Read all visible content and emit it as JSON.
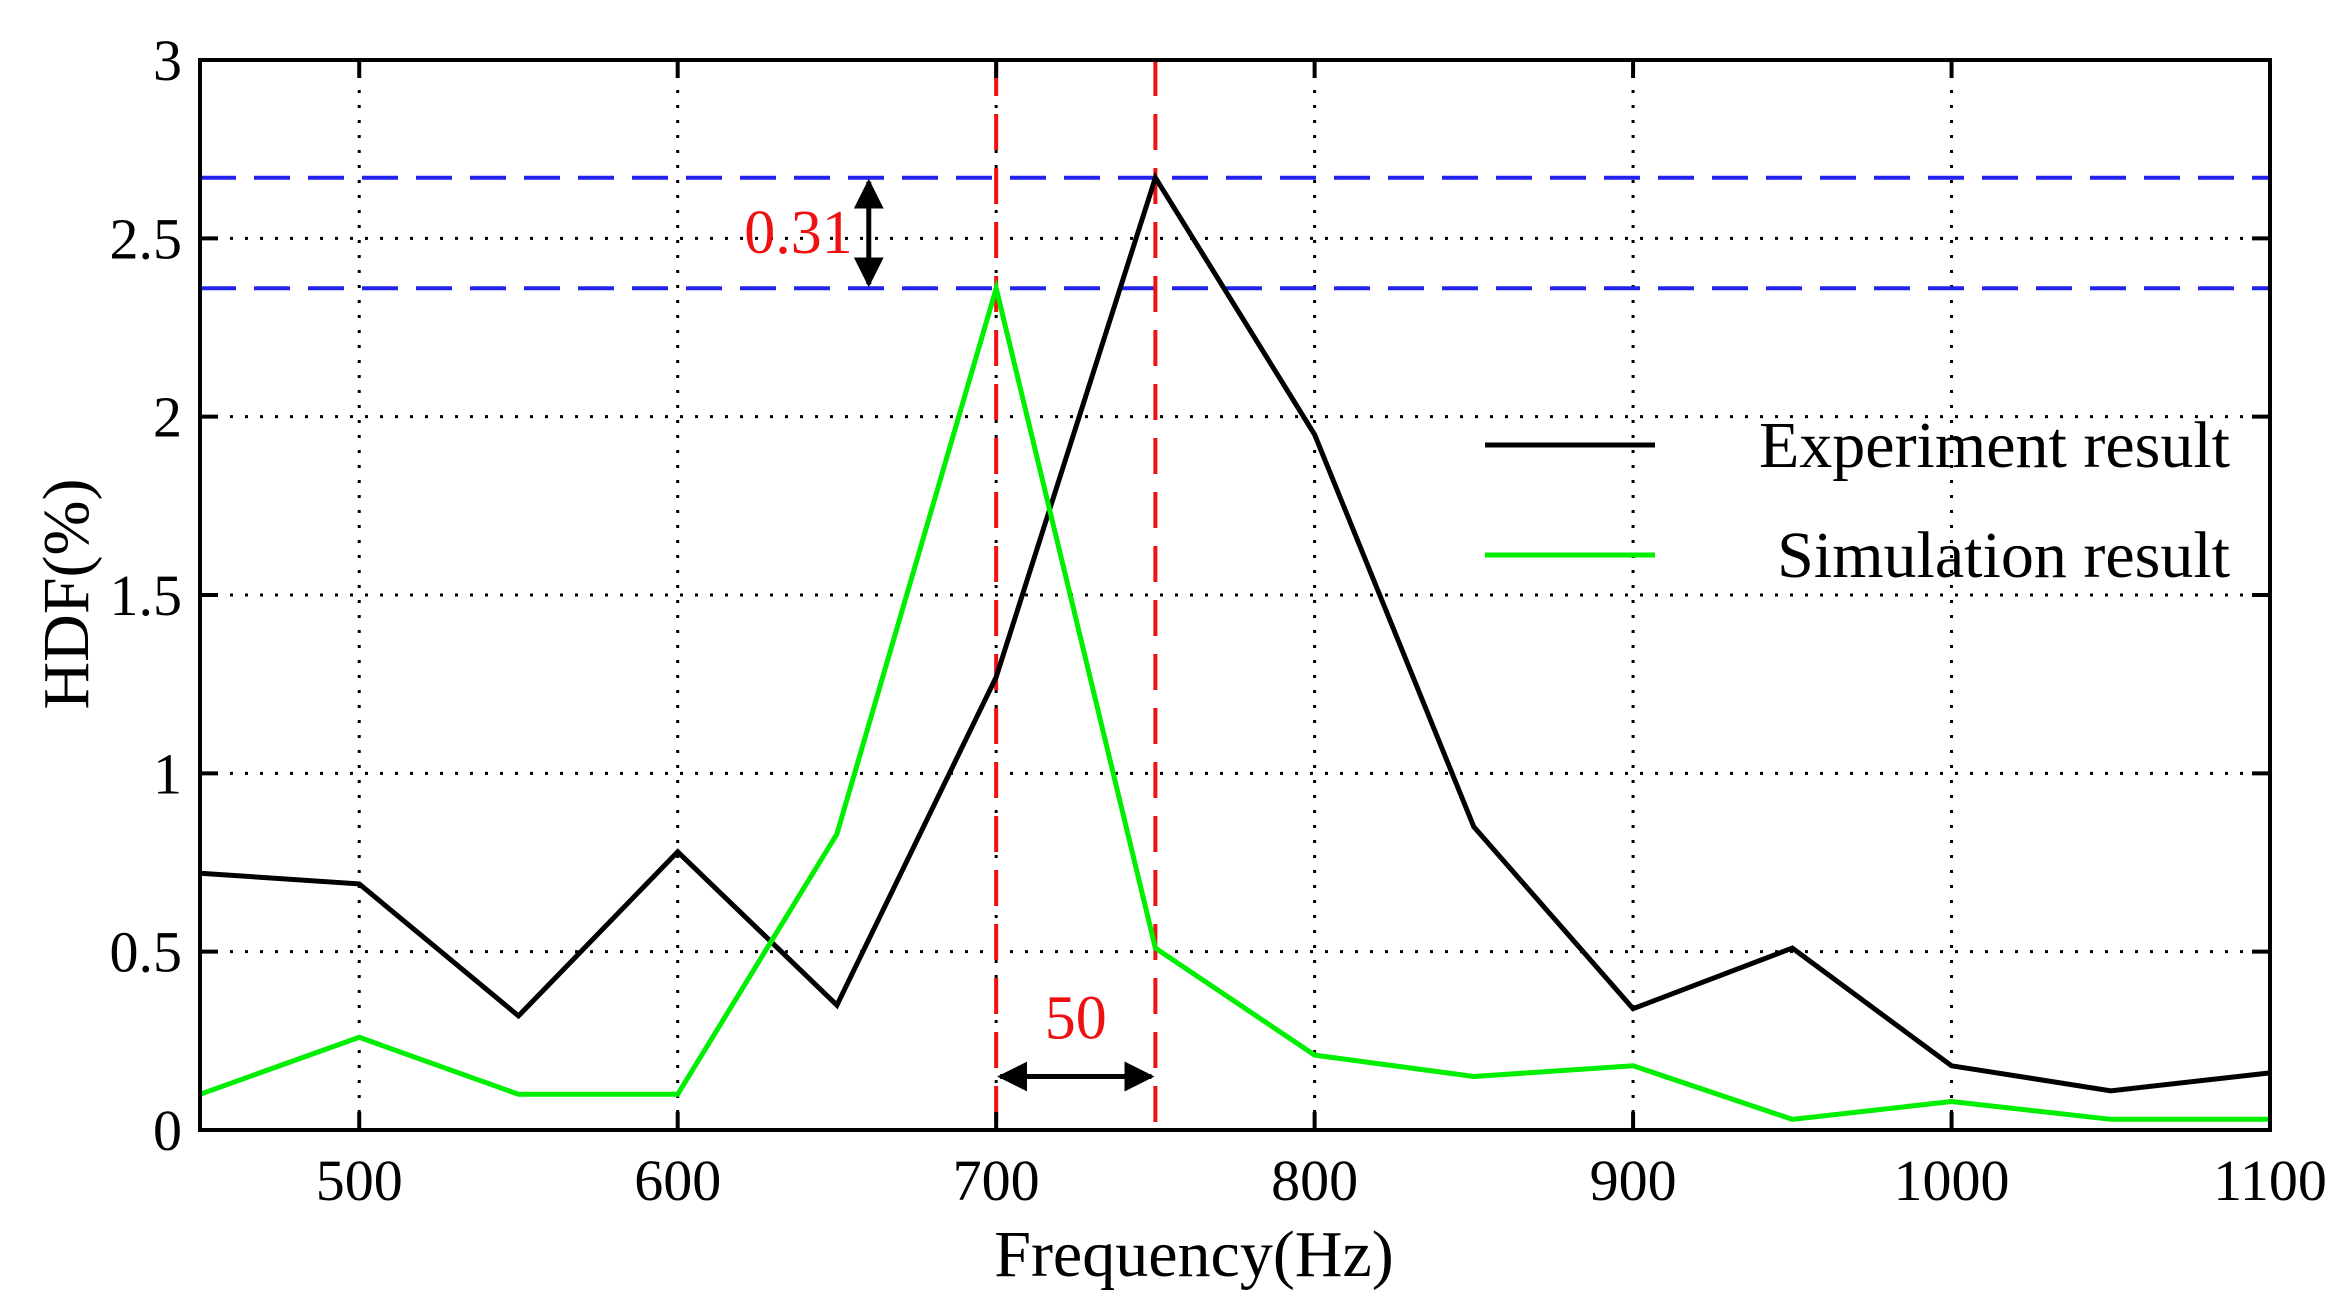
{
  "chart_data": {
    "type": "line",
    "title": "",
    "xlabel": "Frequency(Hz)",
    "ylabel": "HDF(%)",
    "xlim": [
      450,
      1100
    ],
    "ylim": [
      0,
      3
    ],
    "xticks": [
      500,
      600,
      700,
      800,
      900,
      1000,
      1100
    ],
    "xtick_labels": [
      "500",
      "600",
      "700",
      "800",
      "900",
      "1000",
      "1100"
    ],
    "yticks": [
      0,
      0.5,
      1,
      1.5,
      2,
      2.5,
      3
    ],
    "ytick_labels": [
      "0",
      "0.5",
      "1",
      "1.5",
      "2",
      "2.5",
      "3"
    ],
    "grid": true,
    "legend_position": "right",
    "x": [
      450,
      500,
      550,
      600,
      650,
      700,
      750,
      800,
      850,
      900,
      950,
      1000,
      1050,
      1100
    ],
    "series": [
      {
        "name": "Experiment result",
        "color": "#000000",
        "values": [
          0.72,
          0.69,
          0.32,
          0.78,
          0.35,
          1.27,
          2.67,
          1.95,
          0.85,
          0.34,
          0.51,
          0.18,
          0.11,
          0.16
        ]
      },
      {
        "name": "Simulation result",
        "color": "#00ee00",
        "values": [
          0.1,
          0.26,
          0.1,
          0.1,
          0.83,
          2.36,
          0.51,
          0.21,
          0.15,
          0.18,
          0.03,
          0.08,
          0.03,
          0.03
        ]
      }
    ],
    "reference_lines": {
      "horizontal": {
        "color": "#2222ee",
        "values": [
          2.67,
          2.36
        ]
      },
      "vertical": {
        "color": "#ee1111",
        "values": [
          700,
          750
        ]
      }
    },
    "annotations": [
      {
        "text": "0.31",
        "color": "#ee1111",
        "type": "vertical-difference",
        "x": 660,
        "from": 2.36,
        "to": 2.67
      },
      {
        "text": "50",
        "color": "#ee1111",
        "type": "horizontal-difference",
        "y": 0.15,
        "from": 700,
        "to": 750
      }
    ]
  }
}
